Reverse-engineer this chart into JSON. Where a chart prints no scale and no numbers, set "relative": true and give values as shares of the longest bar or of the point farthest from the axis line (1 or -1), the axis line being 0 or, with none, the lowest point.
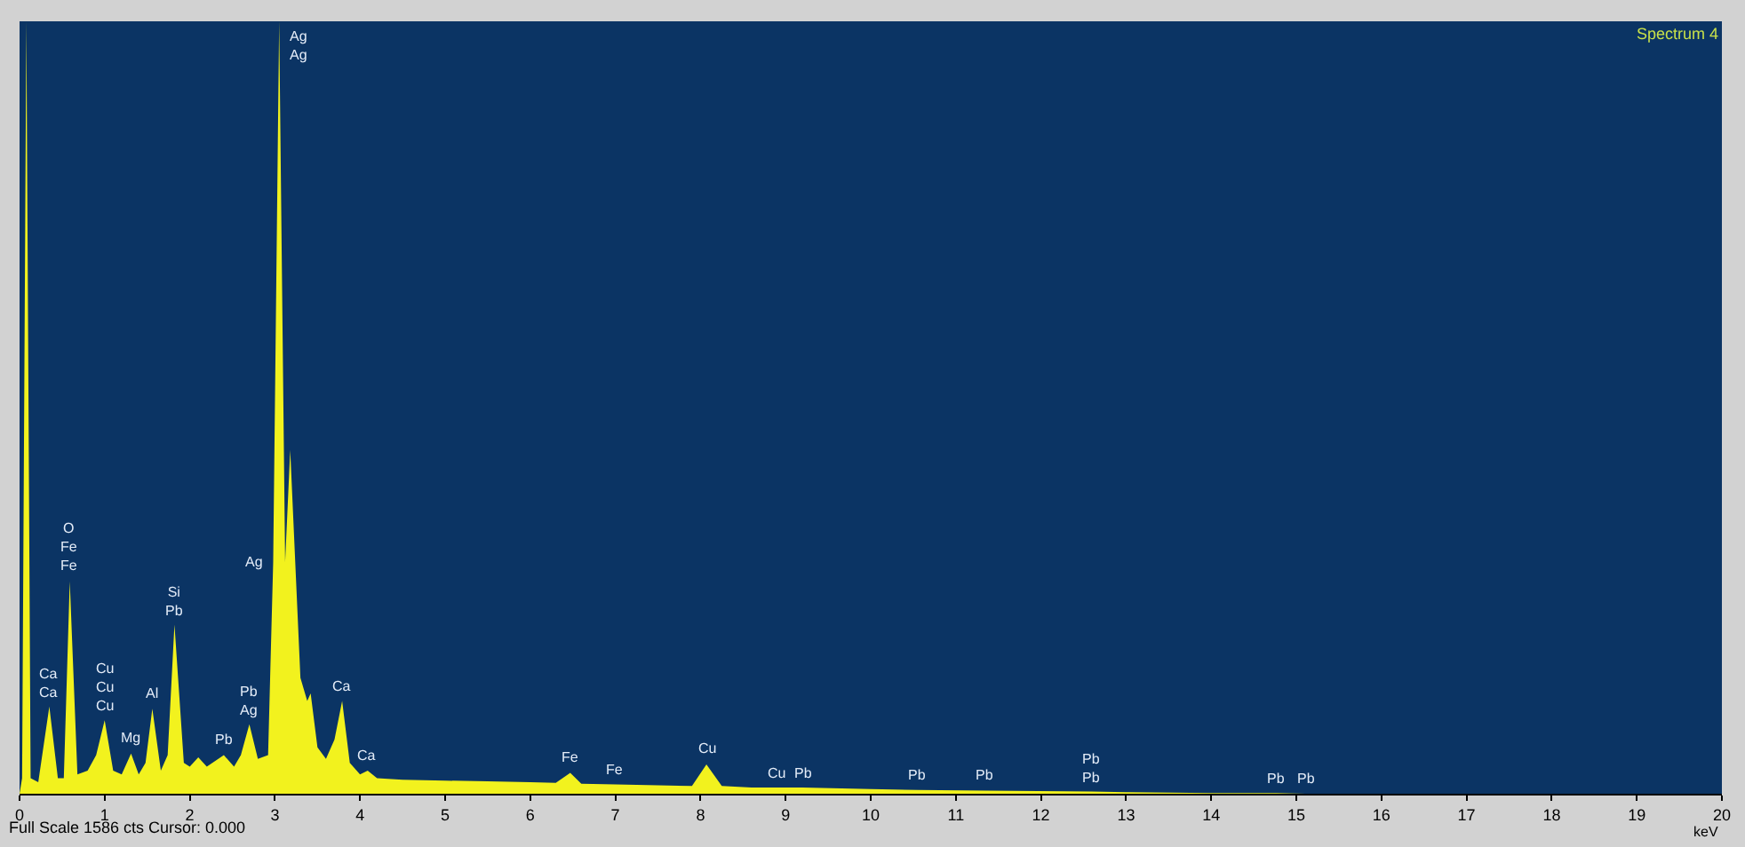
{
  "chart_data": {
    "type": "area",
    "relative": true,
    "color": "#f2f21e",
    "xlabel": "keV",
    "xlim": [
      0,
      20
    ],
    "xticks": [
      0,
      1,
      2,
      3,
      4,
      5,
      6,
      7,
      8,
      9,
      10,
      11,
      12,
      13,
      14,
      15,
      16,
      17,
      18,
      19,
      20
    ],
    "grid": false,
    "x": [
      0,
      0.03,
      0.08,
      0.13,
      0.22,
      0.35,
      0.45,
      0.52,
      0.59,
      0.68,
      0.8,
      0.9,
      1.0,
      1.1,
      1.2,
      1.31,
      1.4,
      1.48,
      1.56,
      1.66,
      1.74,
      1.82,
      1.93,
      2.0,
      2.1,
      2.2,
      2.4,
      2.52,
      2.6,
      2.7,
      2.8,
      2.92,
      2.98,
      3.05,
      3.12,
      3.18,
      3.3,
      3.38,
      3.42,
      3.5,
      3.6,
      3.7,
      3.79,
      3.88,
      4.0,
      4.09,
      4.2,
      4.5,
      5.0,
      5.5,
      6.0,
      6.3,
      6.47,
      6.6,
      7.0,
      7.5,
      7.9,
      8.07,
      8.25,
      8.6,
      8.9,
      9.2,
      10.0,
      10.55,
      11.34,
      12.59,
      13.0,
      14.0,
      14.76,
      15.11,
      20.0
    ],
    "values": [
      0,
      0.02,
      1,
      0.02,
      0.015,
      0.113,
      0.02,
      0.02,
      0.275,
      0.025,
      0.03,
      0.05,
      0.095,
      0.03,
      0.025,
      0.052,
      0.025,
      0.04,
      0.11,
      0.03,
      0.05,
      0.219,
      0.04,
      0.035,
      0.047,
      0.035,
      0.05,
      0.035,
      0.05,
      0.09,
      0.045,
      0.05,
      0.3,
      1,
      0.3,
      0.445,
      0.15,
      0.12,
      0.13,
      0.06,
      0.045,
      0.07,
      0.12,
      0.04,
      0.025,
      0.03,
      0.02,
      0.018,
      0.017,
      0.016,
      0.015,
      0.014,
      0.027,
      0.013,
      0.012,
      0.011,
      0.01,
      0.038,
      0.01,
      0.008,
      0.008,
      0.008,
      0.006,
      0.005,
      0.004,
      0.003,
      0.002,
      0.001,
      0.001,
      0,
      0
    ],
    "annotations": [
      "Spectrum 4",
      "Full Scale 1586 cts Cursor: 0.000",
      {
        "text": "Ca\nCa",
        "x": 0.35,
        "y": 0.113
      },
      {
        "text": "O\nFe\nFe",
        "x": 0.59,
        "y": 0.275
      },
      {
        "text": "Cu\nCu\nCu",
        "x": 1.0,
        "y": 0.095
      },
      {
        "text": "Mg",
        "x": 1.31,
        "y": 0.052
      },
      {
        "text": "Al",
        "x": 1.56,
        "y": 0.11
      },
      {
        "text": "Si\nPb",
        "x": 1.82,
        "y": 0.219
      },
      {
        "text": "Pb",
        "x": 2.4,
        "y": 0.05
      },
      {
        "text": "Pb\nAg",
        "x": 2.7,
        "y": 0.09
      },
      {
        "text": "Ag",
        "x": 2.98,
        "y": 0.3
      },
      {
        "text": "Ag\nAg",
        "x": 3.05,
        "y": 1
      },
      {
        "text": "Ca",
        "x": 3.79,
        "y": 0.12
      },
      {
        "text": "Ca",
        "x": 4.09,
        "y": 0.03
      },
      {
        "text": "Fe",
        "x": 6.47,
        "y": 0.027
      },
      {
        "text": "Fe",
        "x": 7.0,
        "y": 0.012
      },
      {
        "text": "Cu",
        "x": 8.07,
        "y": 0.038
      },
      {
        "text": "Cu",
        "x": 8.9,
        "y": 0.008
      },
      {
        "text": "Pb",
        "x": 9.2,
        "y": 0.008
      },
      {
        "text": "Pb",
        "x": 10.55,
        "y": 0.005
      },
      {
        "text": "Pb",
        "x": 11.34,
        "y": 0.004
      },
      {
        "text": "Pb\nPb",
        "x": 12.59,
        "y": 0.003
      },
      {
        "text": "Pb",
        "x": 14.76,
        "y": 0.001
      },
      {
        "text": "Pb",
        "x": 15.11,
        "y": 0
      }
    ]
  }
}
